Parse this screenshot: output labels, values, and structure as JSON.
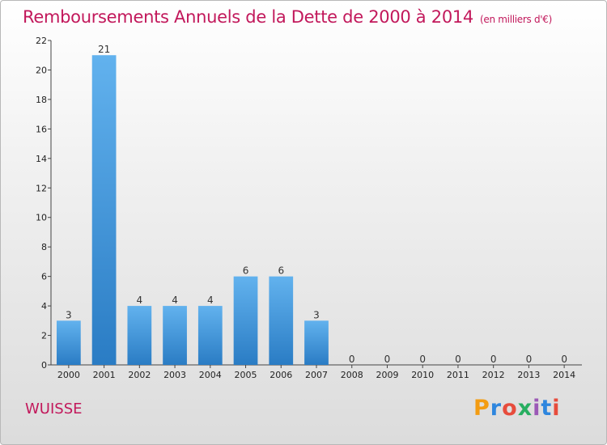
{
  "chart_data": {
    "type": "bar",
    "title": "Remboursements Annuels de la Dette de 2000 à 2014",
    "subtitle": "(en milliers d'€)",
    "xlabel": "",
    "ylabel": "",
    "categories": [
      "2000",
      "2001",
      "2002",
      "2003",
      "2004",
      "2005",
      "2006",
      "2007",
      "2008",
      "2009",
      "2010",
      "2011",
      "2012",
      "2013",
      "2014"
    ],
    "values": [
      3,
      21,
      4,
      4,
      4,
      6,
      6,
      3,
      0,
      0,
      0,
      0,
      0,
      0,
      0
    ],
    "value_labels": [
      "3",
      "21",
      "4",
      "4",
      "4",
      "6",
      "6",
      "3",
      "0",
      "0",
      "0",
      "0",
      "0",
      "0",
      "0"
    ],
    "ylim": [
      0,
      22
    ],
    "yticks": [
      0,
      2,
      4,
      6,
      8,
      10,
      12,
      14,
      16,
      18,
      20,
      22
    ],
    "ytick_labels": [
      "0",
      "2",
      "4",
      "6",
      "8",
      "10",
      "12",
      "14",
      "16",
      "18",
      "20",
      "22"
    ],
    "grid": false,
    "bar_color": "#3a8fd6"
  },
  "footer": {
    "commune": "WUISSE",
    "logo_text": "Proxiti"
  }
}
